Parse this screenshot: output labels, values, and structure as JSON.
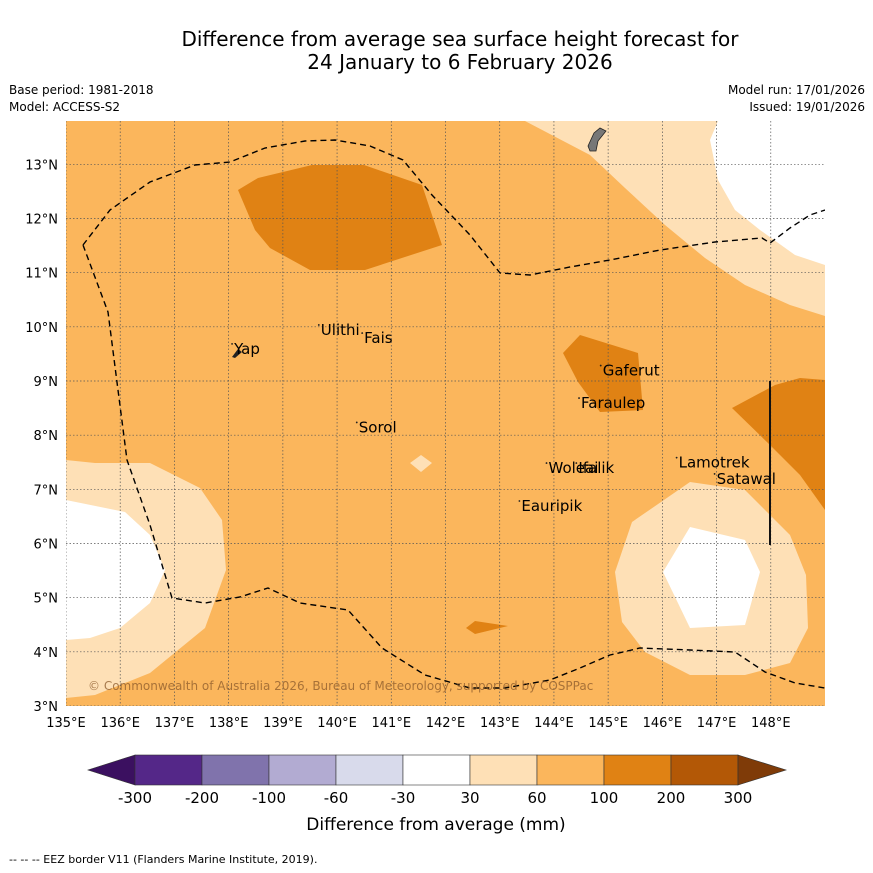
{
  "title": {
    "line1": "Difference from average sea surface height forecast for",
    "line2": "24 January to 6 February 2026"
  },
  "meta_left": {
    "base_period": "Base period: 1981-2018",
    "model": "Model: ACCESS-S2"
  },
  "meta_right": {
    "model_run": "Model run: 17/01/2026",
    "issued": "Issued: 19/01/2026"
  },
  "map": {
    "lon_ticks": [
      "135°E",
      "136°E",
      "137°E",
      "138°E",
      "139°E",
      "140°E",
      "141°E",
      "142°E",
      "143°E",
      "144°E",
      "145°E",
      "146°E",
      "147°E",
      "148°E"
    ],
    "lat_ticks": [
      "13°N",
      "12°N",
      "11°N",
      "10°N",
      "9°N",
      "8°N",
      "7°N",
      "6°N",
      "5°N",
      "4°N",
      "3°N"
    ],
    "extent": {
      "lon_min": 135,
      "lon_max": 149,
      "lat_min": 3,
      "lat_max": 13.8
    },
    "places": [
      {
        "name": "Yap",
        "lon": 138.1,
        "lat": 9.5
      },
      {
        "name": "Ulithi",
        "lon": 139.7,
        "lat": 9.85
      },
      {
        "name": "Fais",
        "lon": 140.5,
        "lat": 9.7
      },
      {
        "name": "Gaferut",
        "lon": 144.9,
        "lat": 9.1
      },
      {
        "name": "Faraulep",
        "lon": 144.5,
        "lat": 8.5
      },
      {
        "name": "Sorol",
        "lon": 140.4,
        "lat": 8.05
      },
      {
        "name": "Woleai",
        "lon": 143.9,
        "lat": 7.3
      },
      {
        "name": "Ifalik",
        "lon": 144.45,
        "lat": 7.3
      },
      {
        "name": "Lamotrek",
        "lon": 146.3,
        "lat": 7.4
      },
      {
        "name": "Satawal",
        "lon": 147.0,
        "lat": 7.1
      },
      {
        "name": "Eauripik",
        "lon": 143.4,
        "lat": 6.6
      }
    ],
    "copyright": "© Commonwealth of Australia 2026, Bureau of Meteorology, supported by COSPPac"
  },
  "colorbar": {
    "ticks": [
      "-300",
      "-200",
      "-100",
      "-60",
      "-30",
      "30",
      "60",
      "100",
      "200",
      "300"
    ],
    "colors": [
      "#3b1060",
      "#542788",
      "#8073ac",
      "#b2abd2",
      "#d8daeb",
      "#ffffff",
      "#fee0b6",
      "#fbb65c",
      "#e08214",
      "#b35806",
      "#7f3b08"
    ],
    "label": "Difference from average (mm)"
  },
  "legend": {
    "eez": "--  --  -- EEZ border V11 (Flanders Marine Institute, 2019)."
  }
}
